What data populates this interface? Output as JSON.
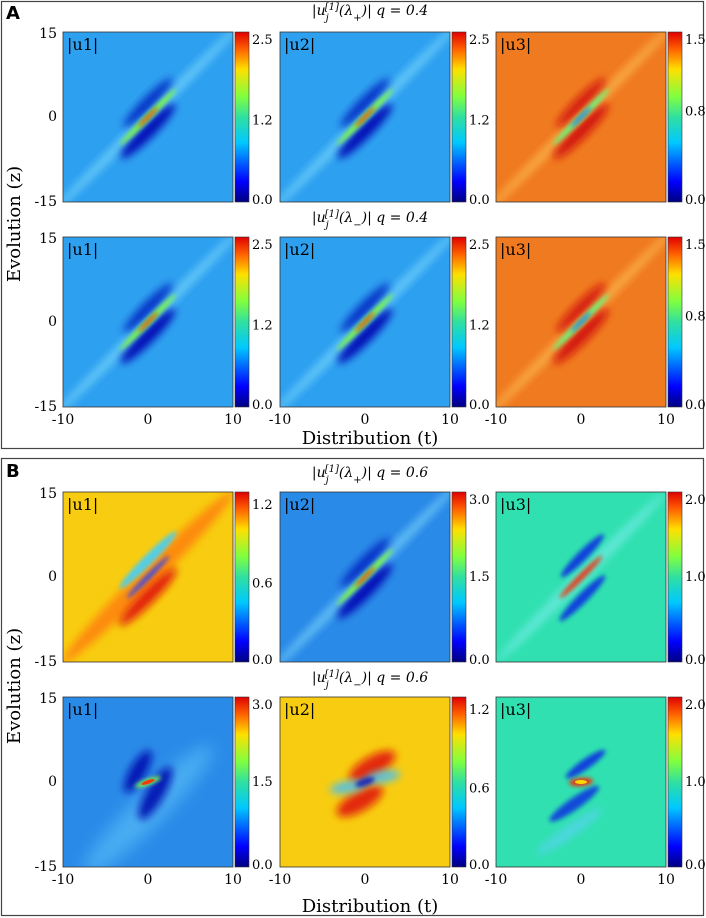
{
  "panels": [
    {
      "letter": "A",
      "ylabel": "Evolution (z)",
      "xlabel": "Distribution (t)",
      "rows": [
        {
          "header": {
            "fn": "|u",
            "sub": "j",
            "sup": "[1]",
            "arg": "(λ",
            "argsub": "+",
            "close": ")|",
            "q": "q = 0.4"
          },
          "plots": [
            {
              "type": "heatmap",
              "label": "|u1|",
              "bg": "#2ea0f0",
              "colorbar_ticks": [
                "2.5",
                "1.2",
                "0.0"
              ],
              "colorbar_range": [
                0,
                2.5
              ],
              "feature": "diagonal-stripe"
            },
            {
              "type": "heatmap",
              "label": "|u2|",
              "bg": "#2ea0f0",
              "colorbar_ticks": [
                "2.5",
                "1.2",
                "0.0"
              ],
              "colorbar_range": [
                0,
                2.5
              ],
              "feature": "diagonal-stripe"
            },
            {
              "type": "heatmap",
              "label": "|u3|",
              "bg": "#f07a20",
              "colorbar_ticks": [
                "1.5",
                "0.8",
                "0.0"
              ],
              "colorbar_range": [
                0,
                1.5
              ],
              "feature": "diagonal-stripe-orange"
            }
          ]
        },
        {
          "header": {
            "fn": "|u",
            "sub": "j",
            "sup": "[1]",
            "arg": "(λ",
            "argsub": "−",
            "close": ")|",
            "q": "q = 0.4"
          },
          "plots": [
            {
              "type": "heatmap",
              "label": "|u1|",
              "bg": "#2ea0f0",
              "colorbar_ticks": [
                "2.5",
                "1.2",
                "0.0"
              ],
              "colorbar_range": [
                0,
                2.5
              ],
              "feature": "diagonal-stripe"
            },
            {
              "type": "heatmap",
              "label": "|u2|",
              "bg": "#2ea0f0",
              "colorbar_ticks": [
                "2.5",
                "1.2",
                "0.0"
              ],
              "colorbar_range": [
                0,
                2.5
              ],
              "feature": "diagonal-stripe"
            },
            {
              "type": "heatmap",
              "label": "|u3|",
              "bg": "#f07a20",
              "colorbar_ticks": [
                "1.5",
                "0.8",
                "0.0"
              ],
              "colorbar_range": [
                0,
                1.5
              ],
              "feature": "diagonal-stripe-orange"
            }
          ]
        }
      ],
      "y_ticks": [
        "15",
        "0",
        "-15"
      ],
      "x_ticks": [
        "-10",
        "0",
        "10"
      ]
    },
    {
      "letter": "B",
      "ylabel": "Evolution (z)",
      "xlabel": "Distribution (t)",
      "rows": [
        {
          "header": {
            "fn": "|u",
            "sub": "j",
            "sup": "[1]",
            "arg": "(λ",
            "argsub": "+",
            "close": ")|",
            "q": "q = 0.6"
          },
          "plots": [
            {
              "type": "heatmap",
              "label": "|u1|",
              "bg": "#f8cc10",
              "colorbar_ticks": [
                "1.2",
                "0.6",
                "0.0"
              ],
              "colorbar_range": [
                0,
                1.3
              ],
              "feature": "yellow-diag"
            },
            {
              "type": "heatmap",
              "label": "|u2|",
              "bg": "#2a8ae8",
              "colorbar_ticks": [
                "3.0",
                "1.5",
                "0.0"
              ],
              "colorbar_range": [
                0,
                3.0
              ],
              "feature": "diagonal-stripe"
            },
            {
              "type": "heatmap",
              "label": "|u3|",
              "bg": "#30e0b0",
              "colorbar_ticks": [
                "2.0",
                "1.0",
                "0.0"
              ],
              "colorbar_range": [
                0,
                2.0
              ],
              "feature": "teal-diag"
            }
          ]
        },
        {
          "header": {
            "fn": "|u",
            "sub": "j",
            "sup": "[1]",
            "arg": "(λ",
            "argsub": "−",
            "close": ")|",
            "q": "q = 0.6"
          },
          "plots": [
            {
              "type": "heatmap",
              "label": "|u1|",
              "bg": "#2a8ae8",
              "colorbar_ticks": [
                "3.0",
                "1.5",
                "0.0"
              ],
              "colorbar_range": [
                0,
                3.0
              ],
              "feature": "blue-blob"
            },
            {
              "type": "heatmap",
              "label": "|u2|",
              "bg": "#f8cc10",
              "colorbar_ticks": [
                "1.2",
                "0.6",
                "0.0"
              ],
              "colorbar_range": [
                0,
                1.3
              ],
              "feature": "yellow-blob"
            },
            {
              "type": "heatmap",
              "label": "|u3|",
              "bg": "#30e0b0",
              "colorbar_ticks": [
                "2.0",
                "1.0",
                "0.0"
              ],
              "colorbar_range": [
                0,
                2.0
              ],
              "feature": "teal-blob"
            }
          ]
        }
      ],
      "y_ticks": [
        "15",
        "0",
        "-15"
      ],
      "x_ticks": [
        "-10",
        "0",
        "10"
      ]
    }
  ],
  "chart_data": {
    "type": "heatmap",
    "x_range": [
      -10,
      10
    ],
    "y_range": [
      -15,
      15
    ],
    "xlabel": "Distribution (t)",
    "ylabel": "Evolution (z)",
    "grid": false
  }
}
